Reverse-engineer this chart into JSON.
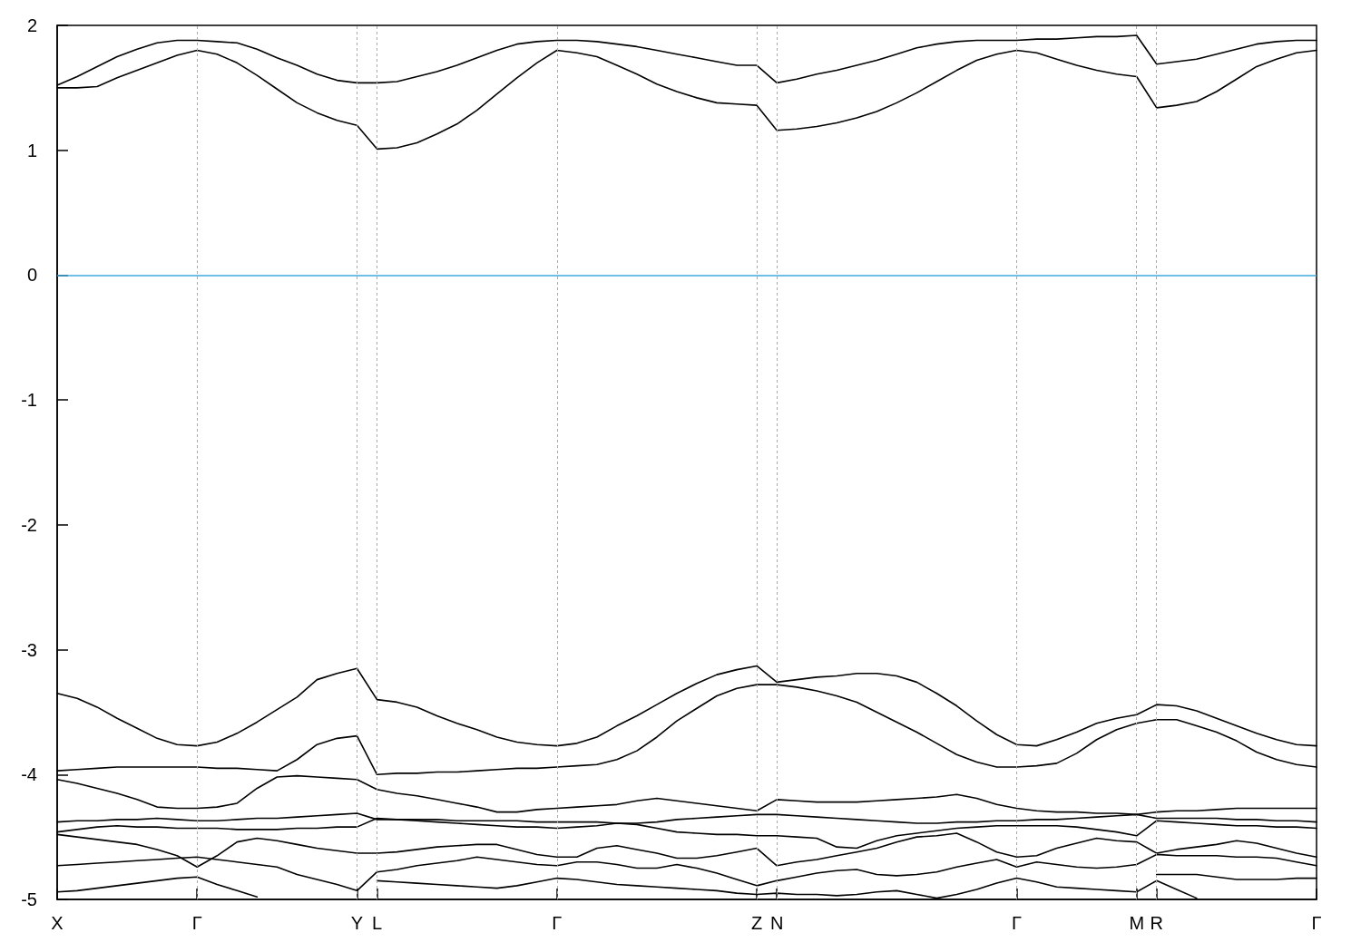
{
  "chart_data": {
    "type": "line",
    "ylim": [
      -5,
      2
    ],
    "categories": [
      "X",
      null,
      null,
      null,
      null,
      null,
      null,
      "Γ",
      null,
      null,
      null,
      null,
      null,
      null,
      null,
      "Y",
      "L",
      null,
      null,
      null,
      null,
      null,
      null,
      null,
      null,
      "Γ",
      null,
      null,
      null,
      null,
      null,
      null,
      null,
      null,
      null,
      "Z",
      "N",
      null,
      null,
      null,
      null,
      null,
      null,
      null,
      null,
      null,
      null,
      null,
      "Γ",
      null,
      null,
      null,
      null,
      null,
      "M",
      "R",
      null,
      null,
      null,
      null,
      null,
      null,
      null,
      "Γ"
    ],
    "yticks": [
      -5,
      -4,
      -3,
      -2,
      -1,
      0,
      1,
      2
    ],
    "grid": "x",
    "marker": "none",
    "line_style": "solid",
    "ref_lines": [
      {
        "axis": "y",
        "value": 0,
        "color": "#3ea8dc"
      }
    ],
    "series": [
      {
        "color": "#000000",
        "values": [
          1.52,
          1.59,
          1.67,
          1.75,
          1.81,
          1.86,
          1.88,
          1.88,
          1.87,
          1.86,
          1.81,
          1.74,
          1.68,
          1.61,
          1.56,
          1.54,
          1.54,
          1.55,
          1.59,
          1.63,
          1.68,
          1.74,
          1.8,
          1.85,
          1.87,
          1.88,
          1.88,
          1.87,
          1.85,
          1.83,
          1.8,
          1.77,
          1.74,
          1.71,
          1.68,
          1.68,
          1.54,
          1.57,
          1.61,
          1.64,
          1.68,
          1.72,
          1.77,
          1.82,
          1.85,
          1.87,
          1.88,
          1.88,
          1.88,
          1.89,
          1.89,
          1.9,
          1.91,
          1.91,
          1.92,
          1.69,
          1.71,
          1.73,
          1.77,
          1.81,
          1.85,
          1.87,
          1.88,
          1.88
        ]
      },
      {
        "color": "#000000",
        "values": [
          1.5,
          1.5,
          1.51,
          1.58,
          1.64,
          1.7,
          1.76,
          1.8,
          1.77,
          1.7,
          1.6,
          1.49,
          1.38,
          1.3,
          1.24,
          1.2,
          1.01,
          1.02,
          1.06,
          1.13,
          1.21,
          1.32,
          1.45,
          1.58,
          1.7,
          1.8,
          1.78,
          1.75,
          1.68,
          1.61,
          1.53,
          1.47,
          1.42,
          1.38,
          1.37,
          1.36,
          1.16,
          1.17,
          1.19,
          1.22,
          1.26,
          1.31,
          1.38,
          1.46,
          1.55,
          1.64,
          1.72,
          1.77,
          1.8,
          1.78,
          1.73,
          1.68,
          1.64,
          1.61,
          1.59,
          1.34,
          1.36,
          1.39,
          1.47,
          1.57,
          1.67,
          1.73,
          1.78,
          1.8
        ]
      },
      {
        "color": "#000000",
        "values": [
          -3.35,
          -3.39,
          -3.46,
          -3.55,
          -3.63,
          -3.71,
          -3.76,
          -3.77,
          -3.74,
          -3.67,
          -3.58,
          -3.48,
          -3.38,
          -3.24,
          -3.19,
          -3.15,
          -3.4,
          -3.42,
          -3.46,
          -3.53,
          -3.59,
          -3.64,
          -3.7,
          -3.74,
          -3.76,
          -3.77,
          -3.75,
          -3.7,
          -3.61,
          -3.53,
          -3.44,
          -3.35,
          -3.27,
          -3.2,
          -3.16,
          -3.13,
          -3.26,
          -3.24,
          -3.22,
          -3.21,
          -3.19,
          -3.19,
          -3.21,
          -3.26,
          -3.35,
          -3.45,
          -3.57,
          -3.68,
          -3.76,
          -3.77,
          -3.72,
          -3.66,
          -3.59,
          -3.55,
          -3.52,
          -3.44,
          -3.45,
          -3.49,
          -3.55,
          -3.61,
          -3.67,
          -3.72,
          -3.76,
          -3.77
        ]
      },
      {
        "color": "#000000",
        "values": [
          -3.97,
          -3.96,
          -3.95,
          -3.94,
          -3.94,
          -3.94,
          -3.94,
          -3.94,
          -3.95,
          -3.95,
          -3.96,
          -3.97,
          -3.88,
          -3.76,
          -3.71,
          -3.69,
          -4.0,
          -3.99,
          -3.99,
          -3.98,
          -3.98,
          -3.97,
          -3.96,
          -3.95,
          -3.95,
          -3.94,
          -3.93,
          -3.92,
          -3.88,
          -3.81,
          -3.7,
          -3.57,
          -3.47,
          -3.37,
          -3.31,
          -3.28,
          -3.28,
          -3.3,
          -3.33,
          -3.37,
          -3.42,
          -3.5,
          -3.58,
          -3.66,
          -3.75,
          -3.84,
          -3.9,
          -3.94,
          -3.94,
          -3.93,
          -3.91,
          -3.83,
          -3.72,
          -3.64,
          -3.59,
          -3.56,
          -3.56,
          -3.61,
          -3.66,
          -3.73,
          -3.82,
          -3.88,
          -3.92,
          -3.94
        ]
      },
      {
        "color": "#000000",
        "values": [
          -4.04,
          -4.07,
          -4.11,
          -4.15,
          -4.2,
          -4.26,
          -4.27,
          -4.27,
          -4.26,
          -4.23,
          -4.11,
          -4.02,
          -4.01,
          -4.02,
          -4.03,
          -4.04,
          -4.12,
          -4.15,
          -4.17,
          -4.2,
          -4.23,
          -4.26,
          -4.3,
          -4.3,
          -4.28,
          -4.27,
          -4.26,
          -4.25,
          -4.24,
          -4.21,
          -4.19,
          -4.21,
          -4.23,
          -4.25,
          -4.27,
          -4.29,
          -4.2,
          -4.21,
          -4.22,
          -4.22,
          -4.22,
          -4.21,
          -4.2,
          -4.19,
          -4.18,
          -4.16,
          -4.19,
          -4.24,
          -4.27,
          -4.29,
          -4.3,
          -4.3,
          -4.31,
          -4.31,
          -4.32,
          -4.3,
          -4.29,
          -4.29,
          -4.28,
          -4.27,
          -4.27,
          -4.27,
          -4.27,
          -4.27
        ]
      },
      {
        "color": "#000000",
        "values": [
          -4.38,
          -4.37,
          -4.37,
          -4.36,
          -4.36,
          -4.35,
          -4.36,
          -4.37,
          -4.37,
          -4.36,
          -4.35,
          -4.35,
          -4.34,
          -4.33,
          -4.32,
          -4.31,
          -4.36,
          -4.36,
          -4.36,
          -4.36,
          -4.37,
          -4.37,
          -4.37,
          -4.37,
          -4.38,
          -4.38,
          -4.38,
          -4.38,
          -4.39,
          -4.39,
          -4.38,
          -4.36,
          -4.35,
          -4.34,
          -4.33,
          -4.32,
          -4.32,
          -4.33,
          -4.34,
          -4.35,
          -4.36,
          -4.37,
          -4.38,
          -4.39,
          -4.39,
          -4.38,
          -4.38,
          -4.37,
          -4.37,
          -4.36,
          -4.36,
          -4.35,
          -4.34,
          -4.33,
          -4.32,
          -4.35,
          -4.35,
          -4.35,
          -4.35,
          -4.36,
          -4.36,
          -4.37,
          -4.37,
          -4.38
        ]
      },
      {
        "color": "#000000",
        "values": [
          -4.46,
          -4.44,
          -4.42,
          -4.41,
          -4.42,
          -4.42,
          -4.43,
          -4.43,
          -4.43,
          -4.44,
          -4.44,
          -4.44,
          -4.43,
          -4.43,
          -4.42,
          -4.42,
          -4.35,
          -4.36,
          -4.37,
          -4.38,
          -4.39,
          -4.4,
          -4.41,
          -4.42,
          -4.42,
          -4.43,
          -4.42,
          -4.41,
          -4.39,
          -4.4,
          -4.43,
          -4.46,
          -4.47,
          -4.48,
          -4.48,
          -4.49,
          -4.49,
          -4.5,
          -4.51,
          -4.58,
          -4.59,
          -4.53,
          -4.49,
          -4.47,
          -4.45,
          -4.43,
          -4.42,
          -4.41,
          -4.41,
          -4.41,
          -4.41,
          -4.42,
          -4.44,
          -4.46,
          -4.49,
          -4.37,
          -4.38,
          -4.39,
          -4.4,
          -4.41,
          -4.41,
          -4.42,
          -4.42,
          -4.43
        ]
      },
      {
        "color": "#000000",
        "values": [
          -4.48,
          -4.5,
          -4.52,
          -4.54,
          -4.56,
          -4.6,
          -4.65,
          -4.74,
          -4.65,
          -4.54,
          -4.51,
          -4.53,
          -4.56,
          -4.59,
          -4.61,
          -4.63,
          -4.63,
          -4.62,
          -4.6,
          -4.58,
          -4.57,
          -4.56,
          -4.56,
          -4.6,
          -4.64,
          -4.66,
          -4.66,
          -4.59,
          -4.57,
          -4.6,
          -4.63,
          -4.67,
          -4.67,
          -4.65,
          -4.62,
          -4.59,
          -4.73,
          -4.7,
          -4.68,
          -4.65,
          -4.62,
          -4.59,
          -4.54,
          -4.5,
          -4.49,
          -4.47,
          -4.54,
          -4.62,
          -4.66,
          -4.65,
          -4.59,
          -4.55,
          -4.51,
          -4.53,
          -4.54,
          -4.63,
          -4.6,
          -4.58,
          -4.56,
          -4.53,
          -4.55,
          -4.59,
          -4.63,
          -4.66
        ]
      },
      {
        "color": "#000000",
        "values": [
          -4.73,
          -4.72,
          -4.71,
          -4.7,
          -4.69,
          -4.68,
          -4.67,
          -4.66,
          -4.68,
          -4.7,
          -4.72,
          -4.74,
          -4.8,
          -4.84,
          -4.88,
          -4.93,
          -4.78,
          -4.76,
          -4.73,
          -4.71,
          -4.69,
          -4.66,
          -4.68,
          -4.7,
          -4.72,
          -4.73,
          -4.7,
          -4.7,
          -4.72,
          -4.75,
          -4.75,
          -4.72,
          -4.75,
          -4.79,
          -4.84,
          -4.89,
          -4.85,
          -4.82,
          -4.79,
          -4.77,
          -4.76,
          -4.8,
          -4.81,
          -4.8,
          -4.78,
          -4.74,
          -4.71,
          -4.68,
          -4.74,
          -4.7,
          -4.72,
          -4.74,
          -4.75,
          -4.74,
          -4.72,
          -4.64,
          -4.65,
          -4.65,
          -4.65,
          -4.66,
          -4.66,
          -4.67,
          -4.7,
          -4.73
        ]
      },
      {
        "color": "#000000",
        "values": [
          -4.94,
          -4.93,
          -4.91,
          -4.89,
          -4.87,
          -4.85,
          -4.83,
          -4.82,
          -4.88,
          -4.93,
          -4.98,
          null,
          null,
          null,
          null,
          null,
          -4.85,
          -4.86,
          -4.87,
          -4.88,
          -4.89,
          -4.9,
          -4.91,
          -4.89,
          -4.86,
          -4.83,
          -4.84,
          -4.86,
          -4.88,
          -4.89,
          -4.9,
          -4.91,
          -4.92,
          -4.93,
          -4.95,
          -4.96,
          -4.95,
          -4.96,
          -4.96,
          -4.97,
          -4.96,
          -4.94,
          -4.93,
          -4.96,
          -4.99,
          -4.96,
          -4.92,
          -4.87,
          -4.83,
          -4.86,
          -4.9,
          -4.91,
          -4.92,
          -4.93,
          -4.94,
          -4.85,
          -4.92,
          -4.99,
          null,
          null,
          null,
          null,
          null,
          null
        ]
      },
      {
        "color": "#000000",
        "values": [
          null,
          null,
          null,
          null,
          null,
          null,
          null,
          null,
          null,
          null,
          null,
          null,
          null,
          null,
          null,
          null,
          null,
          null,
          null,
          null,
          null,
          null,
          null,
          null,
          null,
          null,
          null,
          null,
          null,
          null,
          null,
          null,
          null,
          null,
          null,
          null,
          null,
          null,
          null,
          null,
          null,
          null,
          null,
          null,
          null,
          null,
          null,
          null,
          null,
          null,
          null,
          null,
          null,
          null,
          null,
          -4.8,
          -4.8,
          -4.8,
          -4.82,
          -4.84,
          -4.84,
          -4.84,
          -4.83,
          -4.83
        ]
      }
    ]
  }
}
